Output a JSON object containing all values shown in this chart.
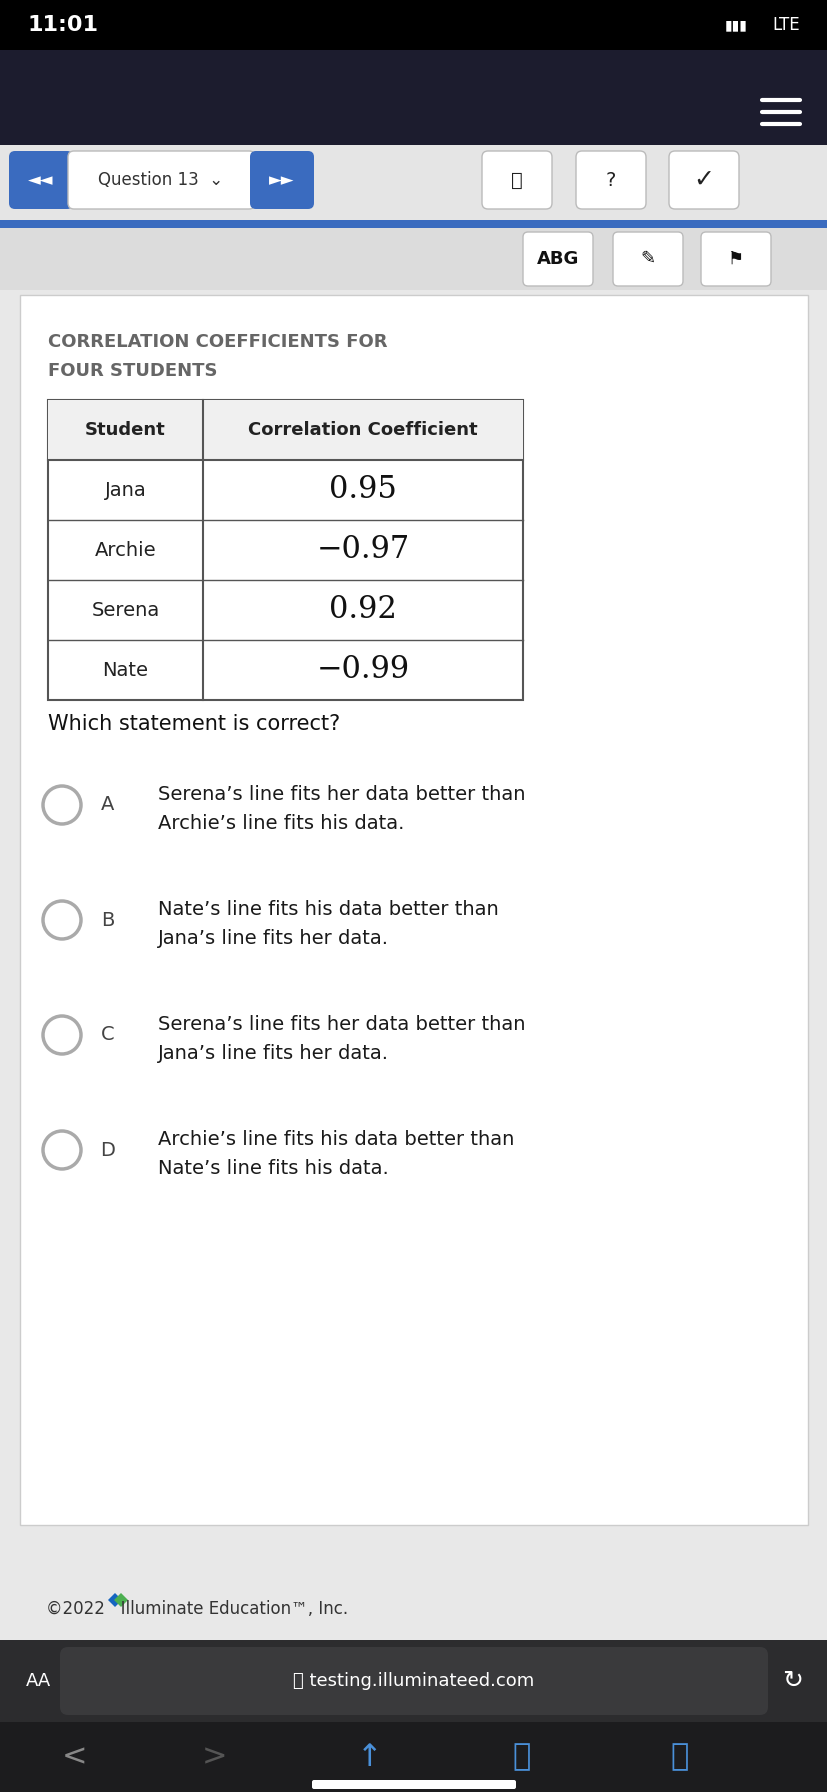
{
  "time": "11:01",
  "signal": "LTE",
  "question_label": "Question 13",
  "abg_label": "ABG",
  "table_title_line1": "CORRELATION COEFFICIENTS FOR",
  "table_title_line2": "FOUR STUDENTS",
  "table_headers": [
    "Student",
    "Correlation Coefficient"
  ],
  "table_rows": [
    [
      "Jana",
      "0.95"
    ],
    [
      "Archie",
      "−0.97"
    ],
    [
      "Serena",
      "0.92"
    ],
    [
      "Nate",
      "−0.99"
    ]
  ],
  "question_text": "Which statement is correct?",
  "options": [
    {
      "letter": "A",
      "text": "Serena’s line fits her data better than\nArchie’s line fits his data."
    },
    {
      "letter": "B",
      "text": "Nate’s line fits his data better than\nJana’s line fits her data."
    },
    {
      "letter": "C",
      "text": "Serena’s line fits her data better than\nJana’s line fits her data."
    },
    {
      "letter": "D",
      "text": "Archie’s line fits his data better than\nNate’s line fits his data."
    }
  ],
  "footer_text": "©2022   Illuminate Education™, Inc.",
  "url_text": "testing.illuminateed.com",
  "bg_status_bar": "#000000",
  "bg_nav_bar": "#1c1c2e",
  "bg_toolbar": "#e5e5e5",
  "bg_content": "#e8e8e8",
  "bg_white_card": "#ffffff",
  "blue_button": "#3a6bbf",
  "table_border": "#555555",
  "title_color": "#666666",
  "text_dark": "#1a1a1a",
  "option_text_color": "#1a1a1a",
  "browser_bg": "#2c2c2e",
  "url_bar_bg": "#3a3a3c",
  "bottom_nav_bg": "#1c1c1e"
}
